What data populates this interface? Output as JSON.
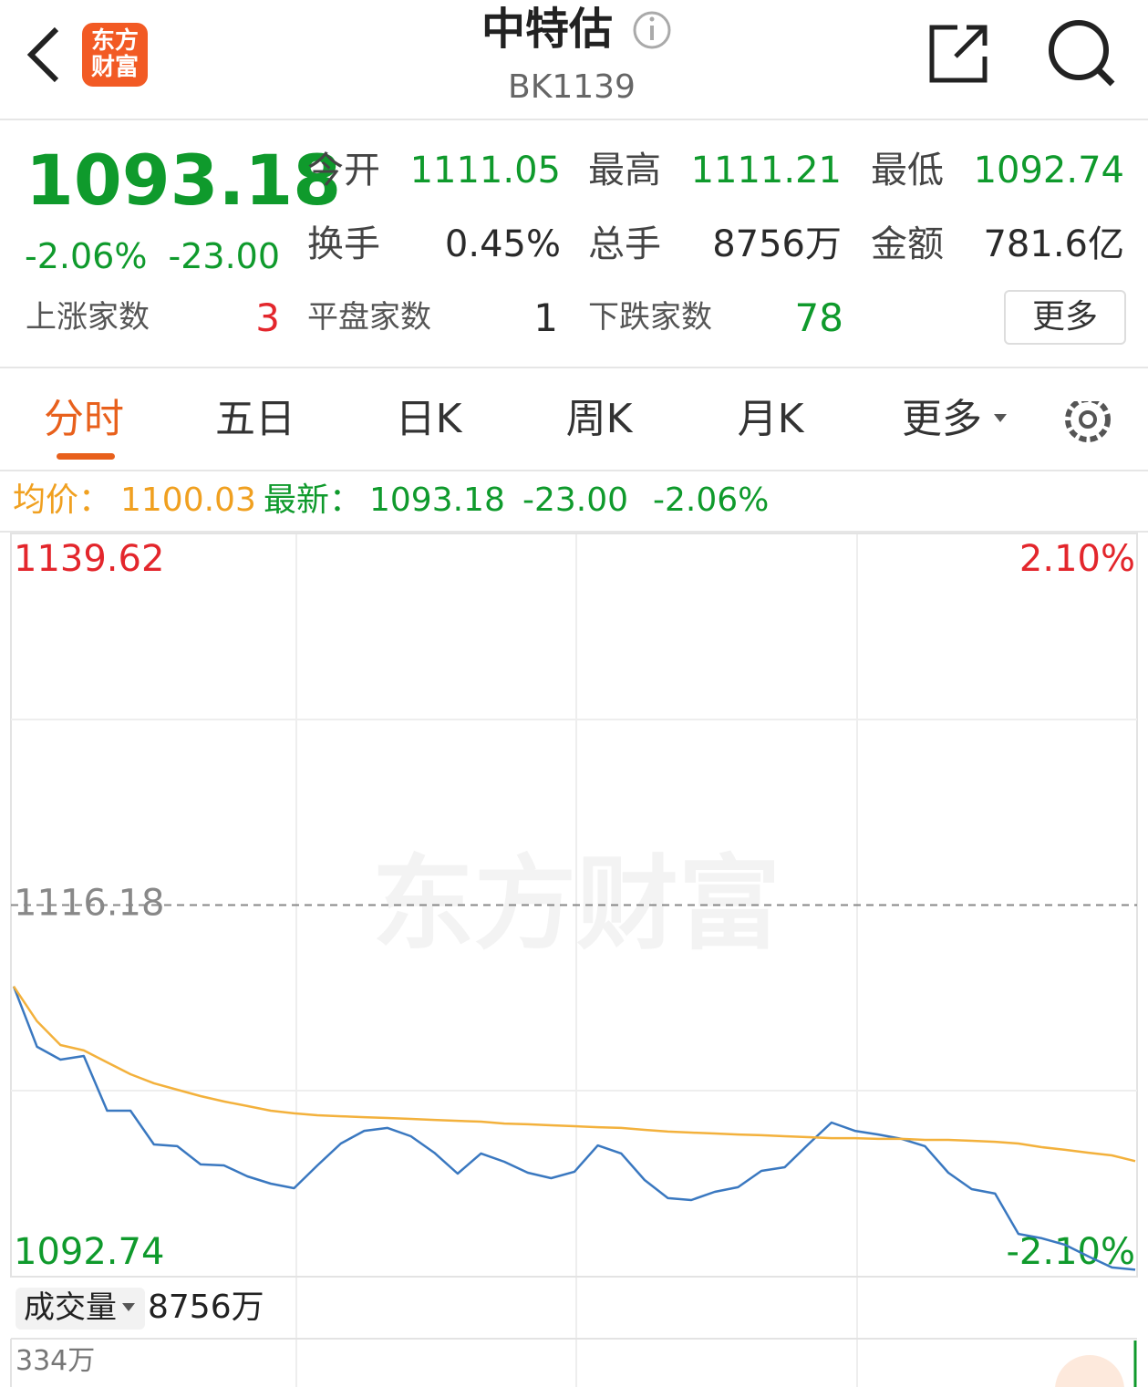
{
  "header": {
    "logo": "东方财富",
    "title": "中特估",
    "code": "BK1139"
  },
  "quote": {
    "price": "1093.18",
    "change_pct": "-2.06%",
    "change": "-23.00",
    "stats": [
      {
        "label": "今开",
        "value": "1111.05"
      },
      {
        "label": "最高",
        "value": "1111.21"
      },
      {
        "label": "最低",
        "value": "1092.74"
      },
      {
        "label": "换手",
        "value": "0.45%"
      },
      {
        "label": "总手",
        "value": "8756万"
      },
      {
        "label": "金额",
        "value": "781.6亿"
      }
    ],
    "breadth": [
      {
        "label": "上涨家数",
        "value": "3"
      },
      {
        "label": "平盘家数",
        "value": "1"
      },
      {
        "label": "下跌家数",
        "value": "78"
      }
    ],
    "more": "更多"
  },
  "tabs": [
    "分时",
    "五日",
    "日K",
    "周K",
    "月K",
    "更多"
  ],
  "info": {
    "avg_label": "均价：",
    "avg": "1100.03",
    "last_label": "最新：",
    "last": "1093.18",
    "change": "-23.00",
    "change_pct": "-2.06%"
  },
  "watermark": "东方财富",
  "chart_data": {
    "type": "line",
    "x": [
      0,
      5,
      10,
      15,
      20,
      25,
      30,
      35,
      40,
      45,
      50,
      55,
      60,
      65,
      70,
      75,
      80,
      85,
      90,
      95,
      100,
      105,
      110,
      115,
      120,
      125,
      130,
      135,
      140,
      145,
      150,
      155,
      160,
      165,
      170,
      175,
      180,
      185,
      190,
      195,
      200,
      205,
      210,
      215,
      220,
      225,
      230,
      235,
      240
    ],
    "xlim": [
      0,
      240
    ],
    "ylim": [
      1092.74,
      1139.62
    ],
    "yticks": [
      1139.62,
      1116.18,
      1092.74
    ],
    "y2lim": [
      -2.1,
      2.1
    ],
    "y2ticks": [
      {
        "value": 2.1,
        "label": "2.10%"
      },
      {
        "value": -2.1,
        "label": "-2.10%"
      }
    ],
    "series": [
      {
        "color": "#3a78c0",
        "values": [
          1111.05,
          1107.24,
          1106.43,
          1106.66,
          1103.21,
          1103.21,
          1101.08,
          1100.97,
          1099.82,
          1099.76,
          1099.07,
          1098.61,
          1098.32,
          1099.76,
          1101.14,
          1101.94,
          1102.12,
          1101.6,
          1100.56,
          1099.24,
          1100.51,
          1099.99,
          1099.3,
          1098.95,
          1099.36,
          1101.02,
          1100.51,
          1098.84,
          1097.69,
          1097.57,
          1098.09,
          1098.38,
          1099.41,
          1099.64,
          1101.08,
          1102.46,
          1101.94,
          1101.71,
          1101.43,
          1100.97,
          1099.3,
          1098.26,
          1097.98,
          1095.44,
          1095.16,
          1094.75,
          1094.01,
          1093.32,
          1093.18
        ]
      },
      {
        "color": "#f3b13c",
        "values": [
          1111.05,
          1108.85,
          1107.35,
          1107.01,
          1106.26,
          1105.51,
          1104.94,
          1104.53,
          1104.13,
          1103.79,
          1103.5,
          1103.21,
          1103.04,
          1102.92,
          1102.86,
          1102.8,
          1102.75,
          1102.69,
          1102.63,
          1102.57,
          1102.52,
          1102.4,
          1102.35,
          1102.29,
          1102.23,
          1102.17,
          1102.12,
          1102.0,
          1101.89,
          1101.83,
          1101.77,
          1101.71,
          1101.66,
          1101.6,
          1101.54,
          1101.48,
          1101.48,
          1101.43,
          1101.43,
          1101.37,
          1101.37,
          1101.31,
          1101.25,
          1101.14,
          1100.91,
          1100.74,
          1100.56,
          1100.39,
          1100.03
        ]
      }
    ]
  },
  "volume": {
    "label": "成交量",
    "total": "8756万",
    "max": "334万"
  }
}
